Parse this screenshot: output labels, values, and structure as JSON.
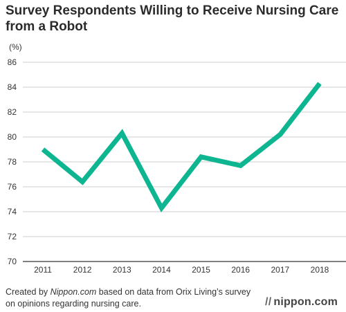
{
  "chart_data": {
    "type": "line",
    "title": "Survey Respondents Willing to Receive Nursing Care from a Robot",
    "yunit": "(%)",
    "x": [
      "2011",
      "2012",
      "2013",
      "2014",
      "2015",
      "2016",
      "2017",
      "2018"
    ],
    "values": [
      79.0,
      76.4,
      80.3,
      74.3,
      78.4,
      77.7,
      80.2,
      84.3
    ],
    "ylim": [
      70,
      86
    ],
    "yticks": [
      "70",
      "72",
      "74",
      "76",
      "78",
      "80",
      "82",
      "84",
      "86"
    ],
    "grid": "horizontal",
    "color": "#0db591"
  },
  "footer": {
    "prefix": "Created by ",
    "source": "Nippon.com",
    "suffix": " based on data from Orix Living’s survey on opinions regarding nursing care."
  },
  "brand": {
    "mark": "//",
    "name": "nippon.com"
  }
}
